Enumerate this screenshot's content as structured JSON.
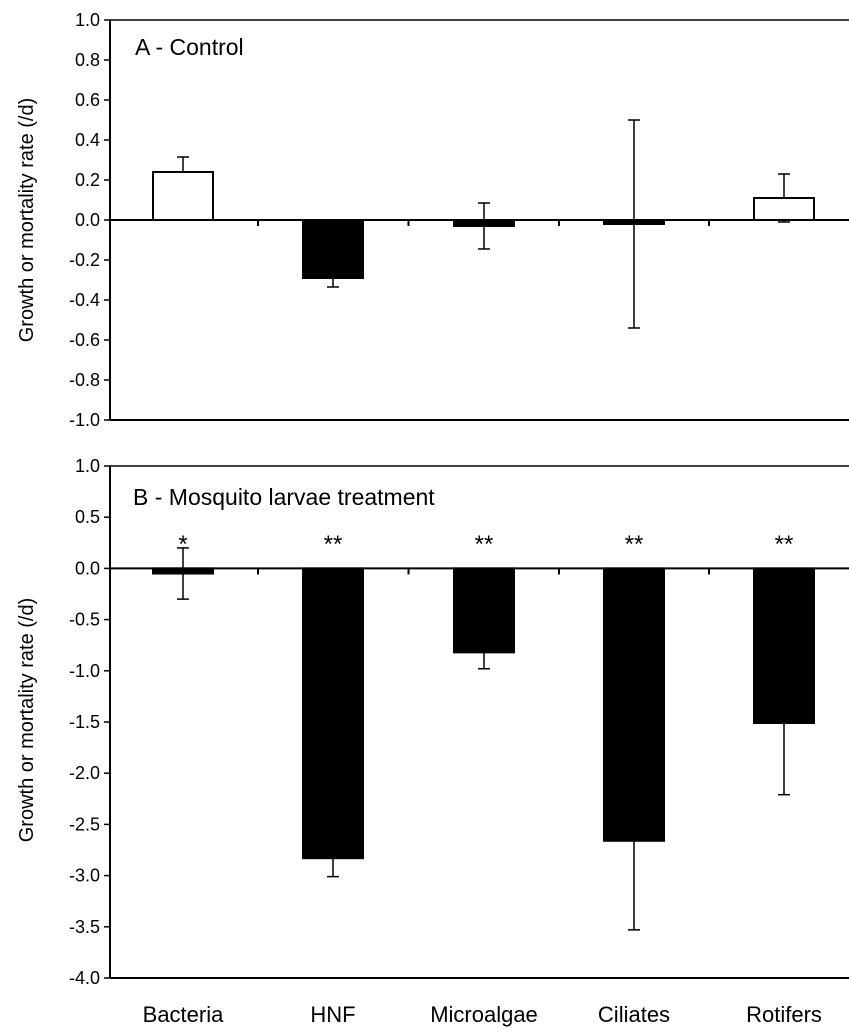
{
  "chart_data": [
    {
      "type": "bar",
      "title": "A - Control",
      "xlabel": "",
      "ylabel": "Growth or mortality rate (/d)",
      "categories": [
        "Bacteria",
        "HNF",
        "Microalgae",
        "Ciliates",
        "Rotifers"
      ],
      "values": [
        0.24,
        -0.29,
        -0.03,
        -0.02,
        0.11
      ],
      "errors": [
        0.075,
        0.045,
        0.115,
        0.52,
        0.12
      ],
      "bar_fill": [
        "#ffffff",
        "#000000",
        "#000000",
        "#000000",
        "#ffffff"
      ],
      "ylim": [
        -1.0,
        1.0
      ],
      "yticks": [
        "1.0",
        "0.8",
        "0.6",
        "0.4",
        "0.2",
        "0.0",
        "-0.2",
        "-0.4",
        "-0.6",
        "-0.8",
        "-1.0"
      ],
      "significance": [
        "",
        "",
        "",
        "",
        ""
      ],
      "grid": false,
      "legend": "none"
    },
    {
      "type": "bar",
      "title": "B - Mosquito larvae treatment",
      "xlabel": "",
      "ylabel": "Growth or mortality rate (/d)",
      "categories": [
        "Bacteria",
        "HNF",
        "Microalgae",
        "Ciliates",
        "Rotifers"
      ],
      "values": [
        -0.05,
        -2.83,
        -0.82,
        -2.66,
        -1.51
      ],
      "errors": [
        0.25,
        0.18,
        0.16,
        0.87,
        0.7
      ],
      "bar_fill": [
        "#000000",
        "#000000",
        "#000000",
        "#000000",
        "#000000"
      ],
      "ylim": [
        -4.0,
        1.0
      ],
      "yticks": [
        "1.0",
        "0.5",
        "0.0",
        "-0.5",
        "-1.0",
        "-1.5",
        "-2.0",
        "-2.5",
        "-3.0",
        "-3.5",
        "-4.0"
      ],
      "significance": [
        "*",
        "**",
        "**",
        "**",
        "**"
      ],
      "grid": false,
      "legend": "none"
    }
  ]
}
